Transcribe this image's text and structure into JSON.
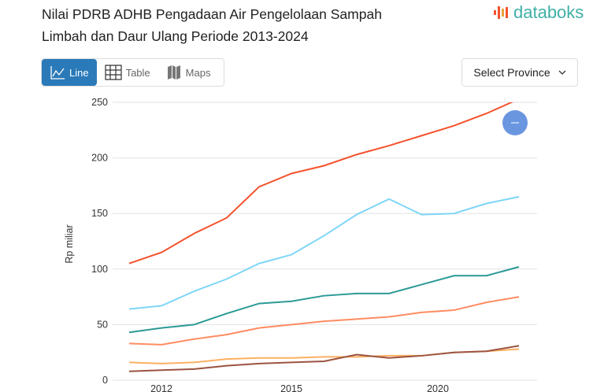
{
  "title": "Nilai PDRB ADHB Pengadaan Air Pengelolaan Sampah Limbah dan Daur Ulang Periode 2013-2024",
  "logo": "databoks",
  "tabs": [
    {
      "label": "Line",
      "icon": "line-chart-icon",
      "active": true
    },
    {
      "label": "Table",
      "icon": "table-icon"
    },
    {
      "label": "Maps",
      "icon": "map-icon"
    }
  ],
  "select": {
    "label": "Select Province",
    "icon": "chevron-down-icon"
  },
  "zoom_button": {
    "icon": "minus-icon",
    "color": "#6a96e0"
  },
  "chart_data": {
    "type": "line",
    "ylabel": "Rp miliar",
    "ylim": [
      0,
      250
    ],
    "yticks": [
      "0",
      "50",
      "100",
      "150",
      "200",
      "250"
    ],
    "xticks": [
      "2012",
      "2015",
      "2020"
    ],
    "grid": true,
    "series": [
      {
        "color": "#f4522d",
        "values": [
          105,
          115,
          132,
          146,
          174,
          186,
          193,
          203,
          211,
          220,
          229,
          240,
          253
        ]
      },
      {
        "color": "#7fd6f7",
        "values": [
          64,
          67,
          80,
          91,
          105,
          113,
          130,
          149,
          163,
          149,
          150,
          159,
          165
        ]
      },
      {
        "color": "#2b9a96",
        "values": [
          43,
          47,
          50,
          60,
          69,
          71,
          76,
          78,
          78,
          86,
          94,
          94,
          102
        ]
      },
      {
        "color": "#ff8c63",
        "values": [
          33,
          32,
          37,
          41,
          47,
          50,
          53,
          55,
          57,
          61,
          63,
          70,
          75
        ]
      },
      {
        "color": "#fbb062",
        "values": [
          16,
          15,
          16,
          19,
          20,
          20,
          21,
          21,
          22,
          22,
          25,
          26,
          28
        ]
      },
      {
        "color": "#9b5340",
        "values": [
          8,
          9,
          10,
          13,
          15,
          16,
          17,
          23,
          20,
          22,
          25,
          26,
          31
        ]
      }
    ]
  }
}
